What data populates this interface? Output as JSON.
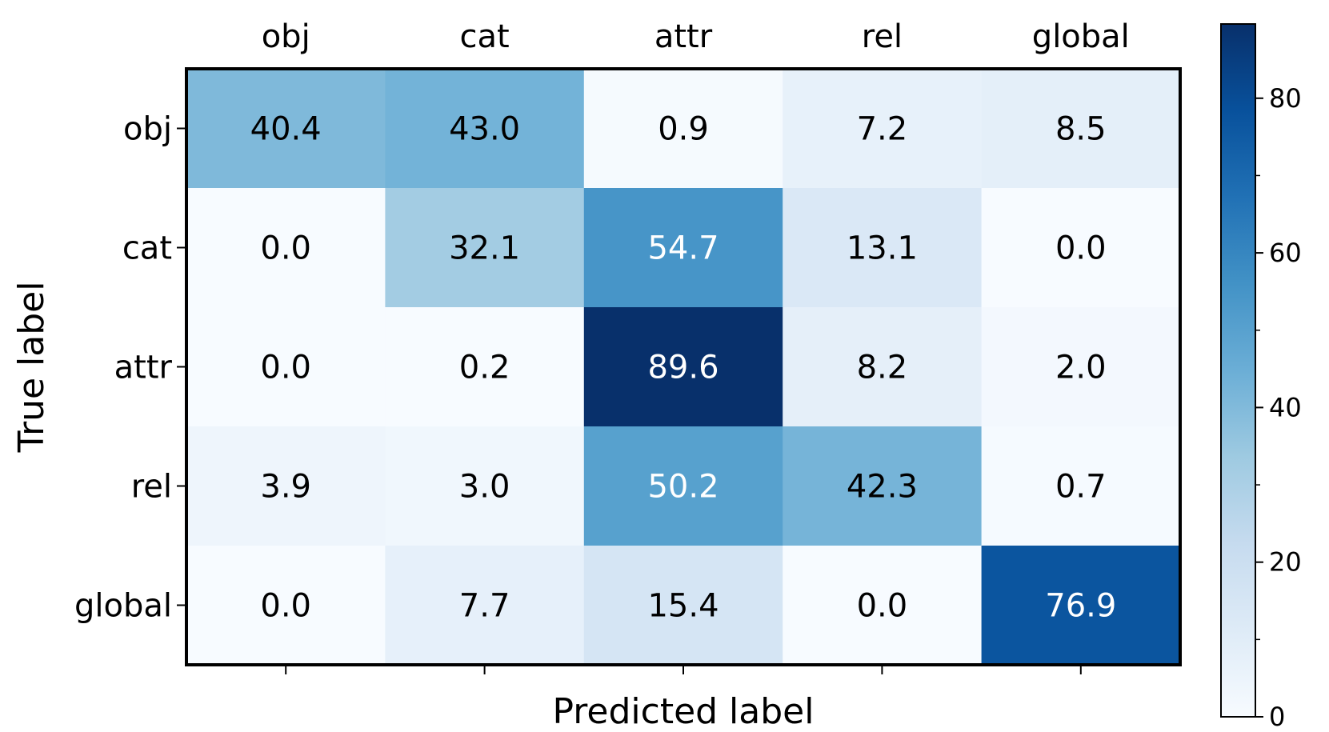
{
  "chart_data": {
    "type": "heatmap",
    "title": "",
    "xlabel": "Predicted label",
    "ylabel": "True label",
    "x_categories": [
      "obj",
      "cat",
      "attr",
      "rel",
      "global"
    ],
    "y_categories": [
      "obj",
      "cat",
      "attr",
      "rel",
      "global"
    ],
    "values": [
      [
        40.4,
        43.0,
        0.9,
        7.2,
        8.5
      ],
      [
        0.0,
        32.1,
        54.7,
        13.1,
        0.0
      ],
      [
        0.0,
        0.2,
        89.6,
        8.2,
        2.0
      ],
      [
        3.9,
        3.0,
        50.2,
        42.3,
        0.7
      ],
      [
        0.0,
        7.7,
        15.4,
        0.0,
        76.9
      ]
    ],
    "value_format": "1 decimal",
    "colormap": "Blues",
    "vmin": 0,
    "vmax": 89.6,
    "colorbar": {
      "ticks": [
        0,
        20,
        40,
        60,
        80
      ],
      "minor_ticks": [
        10,
        30,
        50,
        70
      ]
    },
    "x_tick_position": "top",
    "grid": false,
    "legend": "colorbar-right"
  },
  "colors": {
    "cmap_low": "#f7fbff",
    "cmap_high": "#08306b",
    "text_dark": "#000000",
    "text_light": "#ffffff"
  }
}
